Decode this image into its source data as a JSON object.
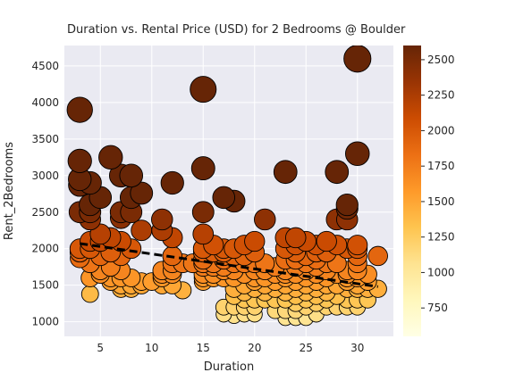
{
  "chart_data": {
    "type": "scatter",
    "title": "Duration vs. Rental Price (USD) for 2 Bedrooms @ Boulder",
    "xlabel": "Duration",
    "ylabel": "Rent_2Bedrooms",
    "xlim": [
      1.5,
      33.5
    ],
    "ylim": [
      800,
      4780
    ],
    "xticks": [
      5,
      10,
      15,
      20,
      25,
      30
    ],
    "yticks": [
      1000,
      1500,
      2000,
      2500,
      3000,
      3500,
      4000,
      4500
    ],
    "grid": true,
    "colorbar": {
      "colormap": "YlOrBr",
      "range": [
        550,
        2600
      ],
      "ticks": [
        750,
        1000,
        1250,
        1500,
        1750,
        2000,
        2250,
        2500
      ]
    },
    "trendline": {
      "style": "dashed",
      "color": "#000000",
      "x": [
        3,
        32
      ],
      "y": [
        2070,
        1480
      ]
    },
    "points": [
      {
        "x": 3,
        "y": 3900
      },
      {
        "x": 3,
        "y": 3200
      },
      {
        "x": 3,
        "y": 2950
      },
      {
        "x": 3,
        "y": 2870
      },
      {
        "x": 3,
        "y": 2500
      },
      {
        "x": 3,
        "y": 2000
      },
      {
        "x": 3,
        "y": 1950
      },
      {
        "x": 3,
        "y": 1870
      },
      {
        "x": 4,
        "y": 2900
      },
      {
        "x": 4,
        "y": 2600
      },
      {
        "x": 4,
        "y": 2500
      },
      {
        "x": 4,
        "y": 2400
      },
      {
        "x": 4,
        "y": 2100
      },
      {
        "x": 4,
        "y": 2000
      },
      {
        "x": 4,
        "y": 1800
      },
      {
        "x": 4,
        "y": 1600
      },
      {
        "x": 4,
        "y": 1380
      },
      {
        "x": 5,
        "y": 2700
      },
      {
        "x": 5,
        "y": 2200
      },
      {
        "x": 5,
        "y": 2100
      },
      {
        "x": 5,
        "y": 1900
      },
      {
        "x": 5,
        "y": 1700
      },
      {
        "x": 5,
        "y": 1650
      },
      {
        "x": 6,
        "y": 3250
      },
      {
        "x": 6,
        "y": 2150
      },
      {
        "x": 6,
        "y": 1950
      },
      {
        "x": 6,
        "y": 1750
      },
      {
        "x": 6,
        "y": 1600
      },
      {
        "x": 6,
        "y": 1550
      },
      {
        "x": 7,
        "y": 3000
      },
      {
        "x": 7,
        "y": 2500
      },
      {
        "x": 7,
        "y": 2420
      },
      {
        "x": 7,
        "y": 2100
      },
      {
        "x": 7,
        "y": 1900
      },
      {
        "x": 7,
        "y": 1700
      },
      {
        "x": 7,
        "y": 1600
      },
      {
        "x": 7,
        "y": 1500
      },
      {
        "x": 7,
        "y": 1450
      },
      {
        "x": 8,
        "y": 3000
      },
      {
        "x": 8,
        "y": 2700
      },
      {
        "x": 8,
        "y": 2500
      },
      {
        "x": 8,
        "y": 2000
      },
      {
        "x": 8,
        "y": 1600
      },
      {
        "x": 8,
        "y": 1500
      },
      {
        "x": 8,
        "y": 1450
      },
      {
        "x": 9,
        "y": 2760
      },
      {
        "x": 9,
        "y": 2250
      },
      {
        "x": 9,
        "y": 1550
      },
      {
        "x": 9,
        "y": 1500
      },
      {
        "x": 10,
        "y": 1550
      },
      {
        "x": 11,
        "y": 2400
      },
      {
        "x": 11,
        "y": 2250
      },
      {
        "x": 11,
        "y": 1700
      },
      {
        "x": 11,
        "y": 1650
      },
      {
        "x": 11,
        "y": 1600
      },
      {
        "x": 11,
        "y": 1500
      },
      {
        "x": 12,
        "y": 2900
      },
      {
        "x": 12,
        "y": 2150
      },
      {
        "x": 12,
        "y": 1900
      },
      {
        "x": 12,
        "y": 1800
      },
      {
        "x": 12,
        "y": 1700
      },
      {
        "x": 12,
        "y": 1650
      },
      {
        "x": 12,
        "y": 1500
      },
      {
        "x": 13,
        "y": 1800
      },
      {
        "x": 13,
        "y": 1430
      },
      {
        "x": 14,
        "y": 1800
      },
      {
        "x": 15,
        "y": 4180
      },
      {
        "x": 15,
        "y": 3100
      },
      {
        "x": 15,
        "y": 2500
      },
      {
        "x": 15,
        "y": 2200
      },
      {
        "x": 15,
        "y": 2000
      },
      {
        "x": 15,
        "y": 1950
      },
      {
        "x": 15,
        "y": 1850
      },
      {
        "x": 15,
        "y": 1800
      },
      {
        "x": 15,
        "y": 1750
      },
      {
        "x": 15,
        "y": 1650
      },
      {
        "x": 15,
        "y": 1600
      },
      {
        "x": 15,
        "y": 1550
      },
      {
        "x": 16,
        "y": 2050
      },
      {
        "x": 16,
        "y": 1950
      },
      {
        "x": 16,
        "y": 1800
      },
      {
        "x": 16,
        "y": 1750
      },
      {
        "x": 16,
        "y": 1650
      },
      {
        "x": 16,
        "y": 1600
      },
      {
        "x": 17,
        "y": 2700
      },
      {
        "x": 17,
        "y": 2000
      },
      {
        "x": 17,
        "y": 1950
      },
      {
        "x": 17,
        "y": 1900
      },
      {
        "x": 17,
        "y": 1850
      },
      {
        "x": 17,
        "y": 1750
      },
      {
        "x": 17,
        "y": 1700
      },
      {
        "x": 17,
        "y": 1600
      },
      {
        "x": 17,
        "y": 1200
      },
      {
        "x": 17,
        "y": 1100
      },
      {
        "x": 18,
        "y": 2650
      },
      {
        "x": 18,
        "y": 2000
      },
      {
        "x": 18,
        "y": 1900
      },
      {
        "x": 18,
        "y": 1800
      },
      {
        "x": 18,
        "y": 1700
      },
      {
        "x": 18,
        "y": 1600
      },
      {
        "x": 18,
        "y": 1450
      },
      {
        "x": 18,
        "y": 1350
      },
      {
        "x": 18,
        "y": 1200
      },
      {
        "x": 18,
        "y": 1080
      },
      {
        "x": 19,
        "y": 2050
      },
      {
        "x": 19,
        "y": 1900
      },
      {
        "x": 19,
        "y": 1800
      },
      {
        "x": 19,
        "y": 1650
      },
      {
        "x": 19,
        "y": 1500
      },
      {
        "x": 19,
        "y": 1400
      },
      {
        "x": 19,
        "y": 1300
      },
      {
        "x": 19,
        "y": 1200
      },
      {
        "x": 19,
        "y": 1100
      },
      {
        "x": 20,
        "y": 2100
      },
      {
        "x": 20,
        "y": 1950
      },
      {
        "x": 20,
        "y": 1800
      },
      {
        "x": 20,
        "y": 1700
      },
      {
        "x": 20,
        "y": 1600
      },
      {
        "x": 20,
        "y": 1550
      },
      {
        "x": 20,
        "y": 1450
      },
      {
        "x": 20,
        "y": 1300
      },
      {
        "x": 20,
        "y": 1200
      },
      {
        "x": 20,
        "y": 1100
      },
      {
        "x": 21,
        "y": 2400
      },
      {
        "x": 21,
        "y": 1800
      },
      {
        "x": 21,
        "y": 1700
      },
      {
        "x": 21,
        "y": 1600
      },
      {
        "x": 21,
        "y": 1500
      },
      {
        "x": 21,
        "y": 1400
      },
      {
        "x": 21,
        "y": 1300
      },
      {
        "x": 22,
        "y": 1750
      },
      {
        "x": 22,
        "y": 1650
      },
      {
        "x": 22,
        "y": 1550
      },
      {
        "x": 22,
        "y": 1450
      },
      {
        "x": 22,
        "y": 1300
      },
      {
        "x": 22,
        "y": 1150
      },
      {
        "x": 23,
        "y": 3050
      },
      {
        "x": 23,
        "y": 2150
      },
      {
        "x": 23,
        "y": 2000
      },
      {
        "x": 23,
        "y": 1850
      },
      {
        "x": 23,
        "y": 1700
      },
      {
        "x": 23,
        "y": 1650
      },
      {
        "x": 23,
        "y": 1600
      },
      {
        "x": 23,
        "y": 1500
      },
      {
        "x": 23,
        "y": 1400
      },
      {
        "x": 23,
        "y": 1300
      },
      {
        "x": 23,
        "y": 1150
      },
      {
        "x": 23,
        "y": 1050
      },
      {
        "x": 24,
        "y": 2150
      },
      {
        "x": 24,
        "y": 2050
      },
      {
        "x": 24,
        "y": 1950
      },
      {
        "x": 24,
        "y": 1850
      },
      {
        "x": 24,
        "y": 1750
      },
      {
        "x": 24,
        "y": 1650
      },
      {
        "x": 24,
        "y": 1550
      },
      {
        "x": 24,
        "y": 1450
      },
      {
        "x": 24,
        "y": 1350
      },
      {
        "x": 24,
        "y": 1250
      },
      {
        "x": 24,
        "y": 1150
      },
      {
        "x": 24,
        "y": 1050
      },
      {
        "x": 25,
        "y": 2100
      },
      {
        "x": 25,
        "y": 1900
      },
      {
        "x": 25,
        "y": 1800
      },
      {
        "x": 25,
        "y": 1700
      },
      {
        "x": 25,
        "y": 1600
      },
      {
        "x": 25,
        "y": 1500
      },
      {
        "x": 25,
        "y": 1400
      },
      {
        "x": 25,
        "y": 1300
      },
      {
        "x": 25,
        "y": 1200
      },
      {
        "x": 25,
        "y": 1050
      },
      {
        "x": 26,
        "y": 2050
      },
      {
        "x": 26,
        "y": 1950
      },
      {
        "x": 26,
        "y": 1850
      },
      {
        "x": 26,
        "y": 1750
      },
      {
        "x": 26,
        "y": 1650
      },
      {
        "x": 26,
        "y": 1550
      },
      {
        "x": 26,
        "y": 1450
      },
      {
        "x": 26,
        "y": 1350
      },
      {
        "x": 26,
        "y": 1250
      },
      {
        "x": 26,
        "y": 1100
      },
      {
        "x": 27,
        "y": 2100
      },
      {
        "x": 27,
        "y": 1950
      },
      {
        "x": 27,
        "y": 1800
      },
      {
        "x": 27,
        "y": 1700
      },
      {
        "x": 27,
        "y": 1600
      },
      {
        "x": 27,
        "y": 1500
      },
      {
        "x": 27,
        "y": 1400
      },
      {
        "x": 27,
        "y": 1300
      },
      {
        "x": 27,
        "y": 1200
      },
      {
        "x": 28,
        "y": 3050
      },
      {
        "x": 28,
        "y": 2400
      },
      {
        "x": 28,
        "y": 2050
      },
      {
        "x": 28,
        "y": 1800
      },
      {
        "x": 28,
        "y": 1650
      },
      {
        "x": 28,
        "y": 1500
      },
      {
        "x": 28,
        "y": 1350
      },
      {
        "x": 28,
        "y": 1200
      },
      {
        "x": 29,
        "y": 2600
      },
      {
        "x": 29,
        "y": 2550
      },
      {
        "x": 29,
        "y": 2400
      },
      {
        "x": 29,
        "y": 2000
      },
      {
        "x": 29,
        "y": 1700
      },
      {
        "x": 29,
        "y": 1650
      },
      {
        "x": 29,
        "y": 1600
      },
      {
        "x": 29,
        "y": 1550
      },
      {
        "x": 29,
        "y": 1450
      },
      {
        "x": 29,
        "y": 1300
      },
      {
        "x": 29,
        "y": 1200
      },
      {
        "x": 30,
        "y": 4600
      },
      {
        "x": 30,
        "y": 3300
      },
      {
        "x": 30,
        "y": 2050
      },
      {
        "x": 30,
        "y": 2000
      },
      {
        "x": 30,
        "y": 1900
      },
      {
        "x": 30,
        "y": 1800
      },
      {
        "x": 30,
        "y": 1700
      },
      {
        "x": 30,
        "y": 1600
      },
      {
        "x": 30,
        "y": 1500
      },
      {
        "x": 30,
        "y": 1450
      },
      {
        "x": 30,
        "y": 1300
      },
      {
        "x": 30,
        "y": 1200
      },
      {
        "x": 31,
        "y": 1650
      },
      {
        "x": 31,
        "y": 1550
      },
      {
        "x": 31,
        "y": 1450
      },
      {
        "x": 31,
        "y": 1300
      },
      {
        "x": 32,
        "y": 1900
      },
      {
        "x": 32,
        "y": 1450
      }
    ]
  }
}
